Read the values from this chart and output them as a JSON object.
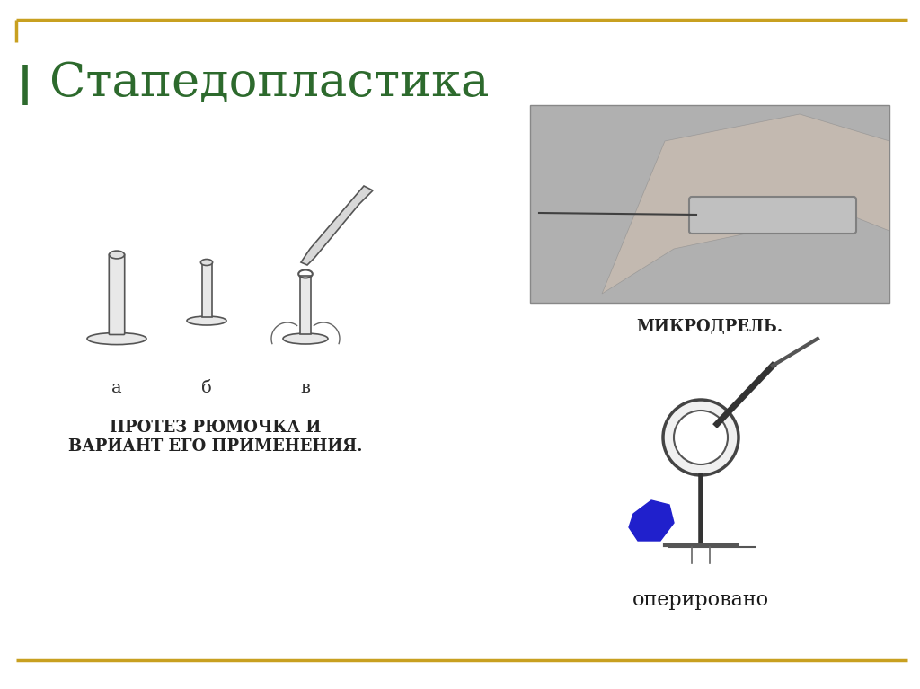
{
  "title": "Стапедопластика",
  "title_color": "#2d6a2d",
  "title_fontsize": 38,
  "bg_color": "#ffffff",
  "border_color_gold": "#c8a020",
  "border_color_green": "#2d6a2d",
  "label_a": "а",
  "label_b": "б",
  "label_v": "в",
  "caption_left": "ПРОТЕЗ РЮМОЧКА И\nВАРИАНТ ЕГО ПРИМЕНЕНИЯ.",
  "caption_right_top": "МИКРОДРЕЛЬ.",
  "caption_right_bottom": "оперировано",
  "text_color_dark": "#1a1a1a",
  "blue_blob_color": "#2020cc"
}
